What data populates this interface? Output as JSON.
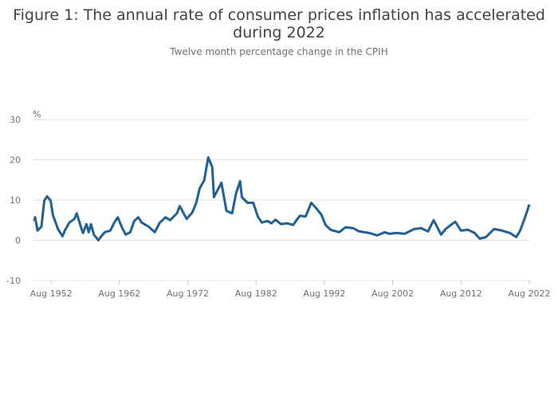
{
  "chart_data": {
    "type": "line",
    "title": "Figure 1: The annual rate of consumer prices inflation has accelerated during 2022",
    "subtitle": "Twelve month percentage change in the CPIH",
    "xlabel": "",
    "ylabel": "%",
    "ylim": [
      -10,
      30
    ],
    "yticks": [
      "30",
      "20",
      "10",
      "0",
      "-10"
    ],
    "ytick_values": [
      30,
      20,
      10,
      0,
      -10
    ],
    "xlim": [
      "1950-01",
      "2022-08"
    ],
    "xticks": [
      "Aug 1952",
      "Aug 1962",
      "Aug 1972",
      "Aug 1982",
      "Aug 1992",
      "Aug 2002",
      "Aug 2012",
      "Aug 2022"
    ],
    "grid": true,
    "legend": "none",
    "line_color": "#206095",
    "series": [
      {
        "x": [
          "1950-02",
          "1950-04",
          "1950-08",
          "1951-03",
          "1951-08",
          "1952-01",
          "1952-07",
          "1952-11",
          "1953-08",
          "1954-04",
          "1954-08",
          "1955-04",
          "1956-01",
          "1956-05",
          "1957-01",
          "1957-04",
          "1957-10",
          "1958-02",
          "1958-06",
          "1958-11",
          "1959-07",
          "1959-11",
          "1960-06",
          "1961-04",
          "1961-11",
          "1962-05",
          "1963-01",
          "1963-07",
          "1964-03",
          "1964-10",
          "1965-05",
          "1965-11",
          "1966-11",
          "1967-10",
          "1968-07",
          "1969-05",
          "1970-01",
          "1971-01",
          "1971-06",
          "1972-06",
          "1973-04",
          "1973-11",
          "1974-05",
          "1975-01",
          "1975-08",
          "1976-03",
          "1976-06",
          "1977-02",
          "1977-07",
          "1978-04",
          "1979-02",
          "1979-09",
          "1980-04",
          "1980-07",
          "1981-05",
          "1982-03",
          "1982-11",
          "1983-06",
          "1984-04",
          "1984-11",
          "1985-06",
          "1986-04",
          "1987-03",
          "1988-01",
          "1989-01",
          "1989-11",
          "1990-09",
          "1991-06",
          "1992-03",
          "1992-10",
          "1993-07",
          "1994-10",
          "1995-09",
          "1996-11",
          "1997-09",
          "1999-03",
          "2000-05",
          "2001-06",
          "2002-02",
          "2003-03",
          "2004-05",
          "2005-10",
          "2006-10",
          "2007-10",
          "2008-08",
          "2009-09",
          "2010-05",
          "2011-02",
          "2011-10",
          "2012-08",
          "2013-08",
          "2014-08",
          "2015-05",
          "2016-04",
          "2017-06",
          "2018-08",
          "2019-10",
          "2020-09",
          "2021-04",
          "2022-01",
          "2022-08"
        ],
        "y": [
          4.8,
          5.7,
          2.4,
          3.4,
          9.9,
          10.9,
          9.9,
          6.3,
          2.8,
          1.0,
          2.4,
          4.4,
          5.3,
          6.7,
          3.0,
          1.8,
          4.0,
          2.0,
          4.0,
          1.4,
          0.0,
          0.8,
          2.0,
          2.4,
          4.4,
          5.7,
          3.0,
          1.4,
          2.0,
          4.8,
          5.7,
          4.4,
          3.4,
          2.0,
          4.4,
          5.7,
          5.0,
          6.7,
          8.5,
          5.3,
          6.9,
          9.3,
          12.9,
          14.9,
          20.6,
          18.2,
          10.7,
          12.9,
          14.3,
          7.3,
          6.7,
          11.7,
          14.7,
          10.7,
          9.3,
          9.3,
          5.9,
          4.4,
          4.8,
          4.2,
          5.1,
          4.0,
          4.2,
          3.8,
          6.1,
          5.9,
          9.3,
          7.9,
          6.3,
          3.8,
          2.6,
          2.0,
          3.2,
          3.0,
          2.2,
          1.8,
          1.2,
          2.0,
          1.6,
          1.8,
          1.6,
          2.8,
          3.0,
          2.2,
          5.0,
          1.4,
          2.8,
          3.8,
          4.6,
          2.4,
          2.6,
          1.8,
          0.4,
          0.8,
          2.8,
          2.4,
          1.8,
          0.8,
          2.4,
          5.9,
          8.9
        ]
      }
    ]
  }
}
